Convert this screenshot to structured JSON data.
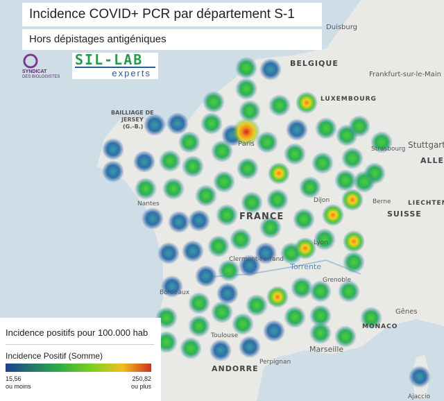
{
  "header": {
    "title": "Incidence COVID+ PCR par département S-1",
    "subtitle": "Hors dépistages antigéniques"
  },
  "logos": {
    "syndicat": "SYNDICAT",
    "biologistes": "DES BIOLOGISTES",
    "sillab": "SIL-LAB",
    "experts": "experts"
  },
  "legend": {
    "title": "Incidence positifs pour 100.000 hab",
    "measure": "Incidence Positif (Somme)",
    "min": "15,56",
    "min_note": "ou moins",
    "max": "250,82",
    "max_note": "ou plus"
  },
  "map_labels": {
    "duisburg": "Duisburg",
    "belgique": "BELGIQUE",
    "frankfurt": "Frankfurt-sur-le-Main",
    "luxembourg": "LUXEMBOURG",
    "jersey1": "BAILLIAGE DE",
    "jersey2": "JERSEY",
    "jersey3": "(G.-B.)",
    "stuttgart": "Stuttgart",
    "alle": "ALLE",
    "strasbourg": "Strasbourg",
    "paris": "Paris",
    "france": "FRANCE",
    "dijon": "Dijon",
    "nantes": "Nantes",
    "suisse": "SUISSE",
    "liechtenstein": "LIECHTENS",
    "berne": "Berne",
    "lyon": "Lyon",
    "clermont": "Clermont-Ferrand",
    "torrente": "Torrente",
    "grenoble": "Grenoble",
    "bordeaux": "Bordeaux",
    "monaco": "MONACO",
    "genes": "Gênes",
    "marseille": "Marseille",
    "toulouse": "Toulouse",
    "andorre": "ANDORRE",
    "perpignan": "Perpignan",
    "ajaccio": "Ajaccio"
  }
}
